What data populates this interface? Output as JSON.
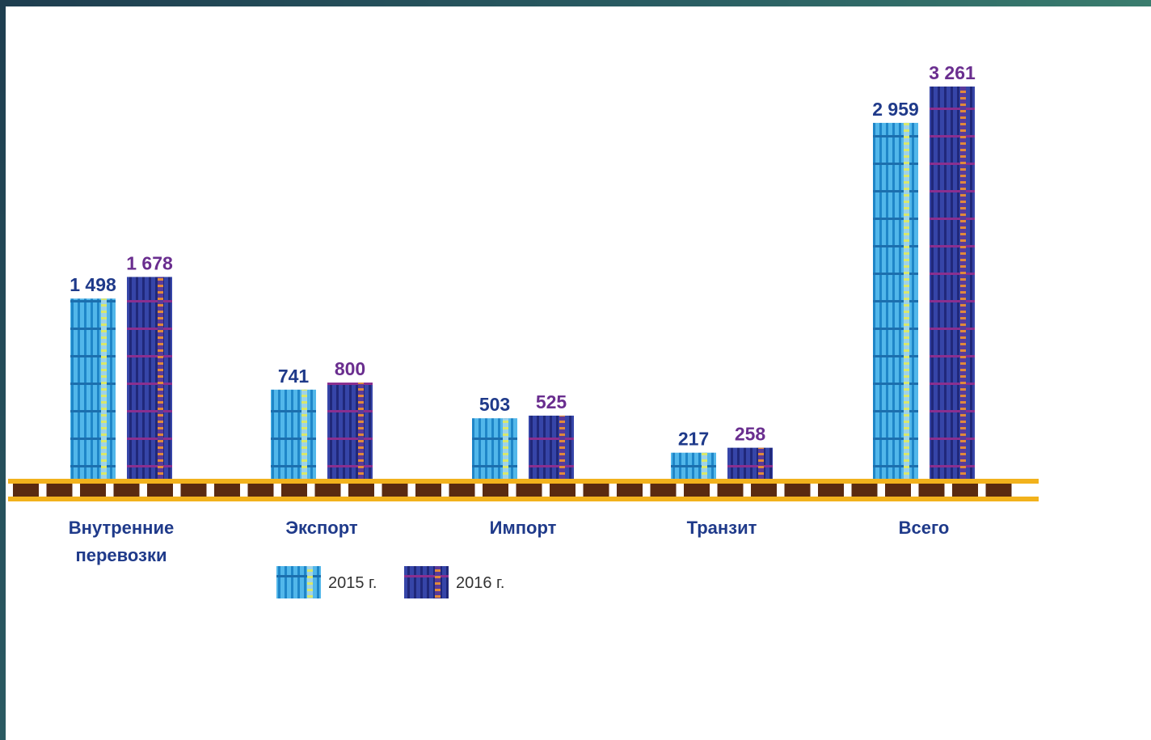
{
  "chart_data": {
    "type": "bar",
    "categories": [
      [
        "Внутренние",
        "перевозки"
      ],
      [
        "Экспорт"
      ],
      [
        "Импорт"
      ],
      [
        "Транзит"
      ],
      [
        "Всего"
      ]
    ],
    "series": [
      {
        "name": "2015 г.",
        "values": [
          1498,
          741,
          503,
          217,
          2959
        ],
        "labels": [
          "1 498",
          "741",
          "503",
          "217",
          "2 959"
        ],
        "color": "#3fa9e0",
        "stripe_color": "#1e7fc2",
        "accent_color": "#d9e86b"
      },
      {
        "name": "2016 г.",
        "values": [
          1678,
          800,
          525,
          258,
          3261
        ],
        "labels": [
          "1 678",
          "800",
          "525",
          "258",
          "3 261"
        ],
        "color": "#2f3e9e",
        "stripe_color": "#7a3d9c",
        "accent_color": "#e08a3a"
      }
    ],
    "ylim": [
      0,
      3261
    ],
    "grid": false,
    "legend": "bottom-left",
    "colors": {
      "value_2015": "#1f3a8a",
      "value_2016": "#6a2e8f",
      "category": "#1f3a8a",
      "rail": "#f2b21c",
      "sleeper": "#5a2a10"
    }
  }
}
